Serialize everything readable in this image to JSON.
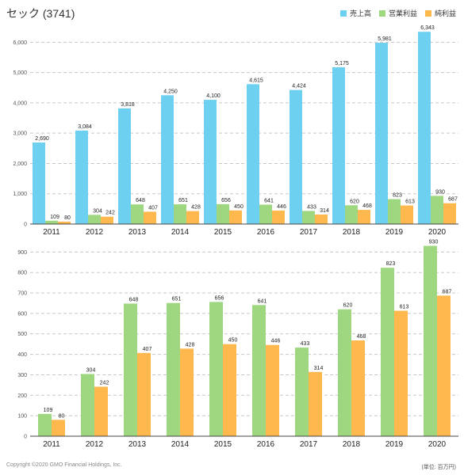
{
  "title": "セック (3741)",
  "copyright": "Copyright ©2020 GMO Financial Holdings, Inc.",
  "unit_note": "(単位: 百万円)",
  "colors": {
    "sales": "#6dd0f0",
    "operating": "#9ed77f",
    "net": "#ffb84d",
    "grid": "#c8c8c8",
    "axis": "#444444"
  },
  "legend": [
    {
      "label": "売上高",
      "color": "#6dd0f0"
    },
    {
      "label": "営業利益",
      "color": "#9ed77f"
    },
    {
      "label": "純利益",
      "color": "#ffb84d"
    }
  ],
  "chart_data": [
    {
      "type": "bar",
      "categories": [
        "2011",
        "2012",
        "2013",
        "2014",
        "2015",
        "2016",
        "2017",
        "2018",
        "2019",
        "2020"
      ],
      "series": [
        {
          "name": "売上高",
          "values": [
            2690,
            3084,
            3818,
            4250,
            4100,
            4615,
            4424,
            5175,
            5981,
            6343
          ],
          "labels": [
            "2,690",
            "3,084",
            "3,818",
            "4,250",
            "4,100",
            "4,615",
            "4,424",
            "5,175",
            "5,981",
            "6,343"
          ],
          "color": "#6dd0f0"
        },
        {
          "name": "営業利益",
          "values": [
            109,
            304,
            648,
            651,
            656,
            641,
            433,
            620,
            823,
            930
          ],
          "labels": [
            "109",
            "304",
            "648",
            "651",
            "656",
            "641",
            "433",
            "620",
            "823",
            "930"
          ],
          "color": "#9ed77f"
        },
        {
          "name": "純利益",
          "values": [
            80,
            242,
            407,
            428,
            450,
            446,
            314,
            468,
            613,
            687
          ],
          "labels": [
            "80",
            "242",
            "407",
            "428",
            "450",
            "446",
            "314",
            "468",
            "613",
            "687"
          ],
          "color": "#ffb84d"
        }
      ],
      "ylim": [
        0,
        6400
      ],
      "yticks": [
        0,
        1000,
        2000,
        3000,
        4000,
        5000,
        6000
      ],
      "ytick_labels": [
        "0",
        "1,000",
        "2,000",
        "3,000",
        "4,000",
        "5,000",
        "6,000"
      ],
      "grid": true
    },
    {
      "type": "bar",
      "categories": [
        "2011",
        "2012",
        "2013",
        "2014",
        "2015",
        "2016",
        "2017",
        "2018",
        "2019",
        "2020"
      ],
      "series": [
        {
          "name": "営業利益",
          "values": [
            109,
            304,
            648,
            651,
            656,
            641,
            433,
            620,
            823,
            930
          ],
          "labels": [
            "109",
            "304",
            "648",
            "651",
            "656",
            "641",
            "433",
            "620",
            "823",
            "930"
          ],
          "color": "#9ed77f"
        },
        {
          "name": "純利益",
          "values": [
            80,
            242,
            407,
            428,
            450,
            446,
            314,
            468,
            613,
            687
          ],
          "labels": [
            "80",
            "242",
            "407",
            "428",
            "450",
            "446",
            "314",
            "468",
            "613",
            "687"
          ],
          "color": "#ffb84d"
        }
      ],
      "ylim": [
        0,
        940
      ],
      "yticks": [
        0,
        100,
        200,
        300,
        400,
        500,
        600,
        700,
        800,
        900
      ],
      "ytick_labels": [
        "0",
        "100",
        "200",
        "300",
        "400",
        "500",
        "600",
        "700",
        "800",
        "900"
      ],
      "grid": true
    }
  ]
}
